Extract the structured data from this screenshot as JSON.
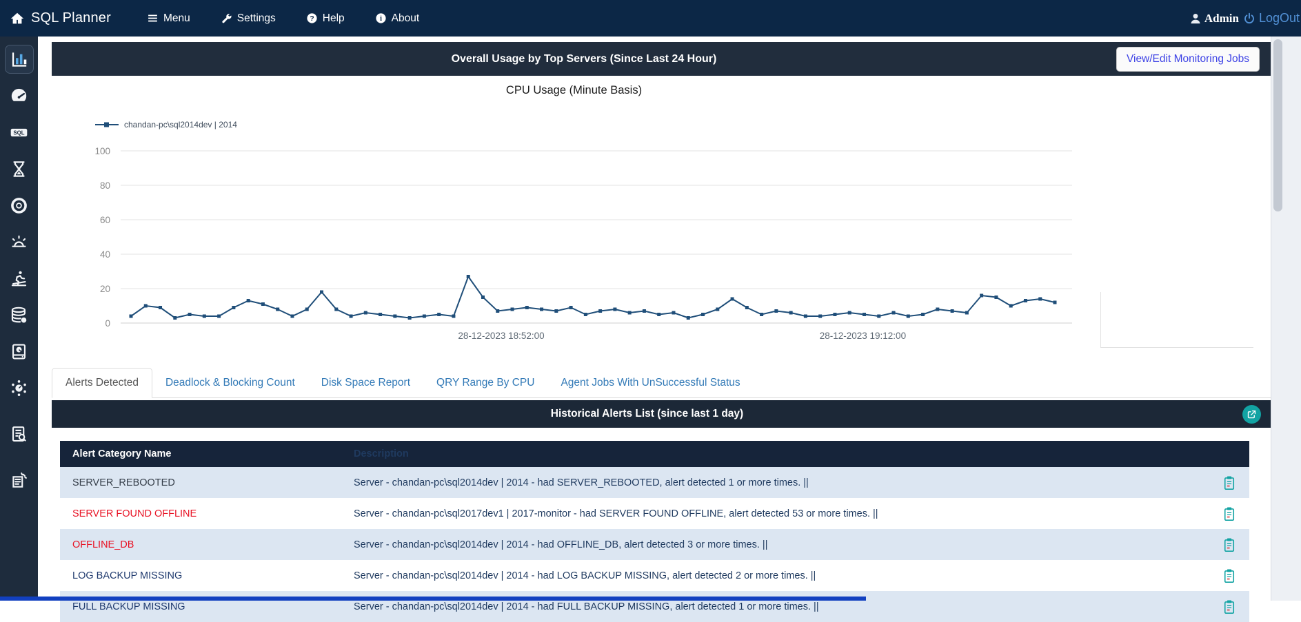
{
  "navbar": {
    "brand": "SQL Planner",
    "items": [
      {
        "label": "Menu",
        "icon": "hamburger-icon"
      },
      {
        "label": "Settings",
        "icon": "wrench-icon"
      },
      {
        "label": "Help",
        "icon": "question-circle-icon"
      },
      {
        "label": "About",
        "icon": "info-circle-icon"
      }
    ],
    "user": "Admin",
    "logout": "LogOut"
  },
  "sidebar": {
    "items": [
      {
        "name": "usage-charts",
        "icon": "bar-chart-icon",
        "active": true
      },
      {
        "name": "dashboard",
        "icon": "gauge-icon",
        "active": false
      },
      {
        "name": "sql",
        "icon": "sql-badge-icon",
        "active": false
      },
      {
        "name": "history",
        "icon": "hourglass-icon",
        "active": false
      },
      {
        "name": "sessions",
        "icon": "donut-icon",
        "active": false
      },
      {
        "name": "alerts",
        "icon": "alarm-icon",
        "active": false
      },
      {
        "name": "performance",
        "icon": "treadmill-icon",
        "active": false
      },
      {
        "name": "databases",
        "icon": "database-icon",
        "active": false
      },
      {
        "name": "storage",
        "icon": "disk-drive-icon",
        "active": false
      },
      {
        "name": "services",
        "icon": "gear-network-icon",
        "active": false
      },
      {
        "name": "report-search",
        "icon": "report-search-icon",
        "active": false
      },
      {
        "name": "report-export",
        "icon": "report-send-icon",
        "active": false
      }
    ]
  },
  "panel": {
    "title": "Overall Usage by Top Servers (Since Last 24 Hour)",
    "button": "View/Edit Monitoring Jobs"
  },
  "chart_data": {
    "type": "line",
    "title": "CPU Usage (Minute Basis)",
    "legend": "chandan-pc\\sql2014dev | 2014",
    "series": [
      {
        "name": "chandan-pc\\sql2014dev | 2014",
        "values": [
          4,
          10,
          9,
          3,
          5,
          4,
          4,
          9,
          13,
          11,
          8,
          4,
          8,
          18,
          8,
          4,
          6,
          5,
          4,
          3,
          4,
          5,
          4,
          27,
          15,
          7,
          8,
          9,
          8,
          7,
          9,
          5,
          7,
          8,
          6,
          7,
          5,
          6,
          3,
          5,
          8,
          14,
          9,
          5,
          7,
          6,
          4,
          4,
          5,
          6,
          5,
          4,
          6,
          4,
          5,
          8,
          7,
          6,
          16,
          15,
          10,
          13,
          14,
          12
        ]
      }
    ],
    "x_axis_labels": [
      {
        "label": "28-12-2023 18:52:00",
        "position": 0.4
      },
      {
        "label": "28-12-2023 19:12:00",
        "position": 0.78
      }
    ],
    "ylim": [
      0,
      100
    ],
    "yticks": [
      0,
      20,
      40,
      60,
      80,
      100
    ],
    "grid": true,
    "legend_position": "top-left",
    "line_color": "#1f4e79"
  },
  "tabs": [
    "Alerts Detected",
    "Deadlock & Blocking Count",
    "Disk Space Report",
    "QRY Range By CPU",
    "Agent Jobs With UnSuccessful Status"
  ],
  "alerts": {
    "header": "Historical Alerts List (since last 1 day)",
    "columns": [
      "Alert Category Name",
      "Description"
    ],
    "rows": [
      {
        "category": "SERVER_REBOOTED",
        "category_color": "#333c47",
        "status": "normal",
        "description": "Server - chandan-pc\\sql2014dev | 2014 - had SERVER_REBOOTED, alert detected 1 or more times. ||"
      },
      {
        "category": "SERVER FOUND OFFLINE",
        "category_color": "#e81123",
        "status": "critical",
        "description": "Server - chandan-pc\\sql2017dev1 | 2017-monitor - had SERVER FOUND OFFLINE, alert detected 53 or more times. ||"
      },
      {
        "category": "OFFLINE_DB",
        "category_color": "#e81123",
        "status": "critical",
        "description": "Server - chandan-pc\\sql2014dev | 2014 - had OFFLINE_DB, alert detected 3 or more times. ||"
      },
      {
        "category": "LOG BACKUP MISSING",
        "category_color": "#1f3a6e",
        "status": "normal",
        "description": "Server - chandan-pc\\sql2014dev | 2014 - had LOG BACKUP MISSING, alert detected 2 or more times. ||"
      },
      {
        "category": "FULL BACKUP MISSING",
        "category_color": "#1f3a6e",
        "status": "normal",
        "description": "Server - chandan-pc\\sql2014dev | 2014 - had FULL BACKUP MISSING, alert detected 1 or more times. ||"
      }
    ]
  },
  "colors": {
    "navbar_bg": "#0c2746",
    "sidebar_bg": "#1e2c3d",
    "panel_header_bg": "#212d3d",
    "table_header_bg": "#16243a",
    "row_alt_bg": "#dce6f2",
    "accent_teal": "#12a3a3",
    "link_blue": "#337ab7",
    "alert_red": "#e81123",
    "button_text_blue": "#3c41e5",
    "logout_blue": "#5291d6",
    "description_navy": "#1f3a5f",
    "chart_line": "#1f4e79"
  }
}
